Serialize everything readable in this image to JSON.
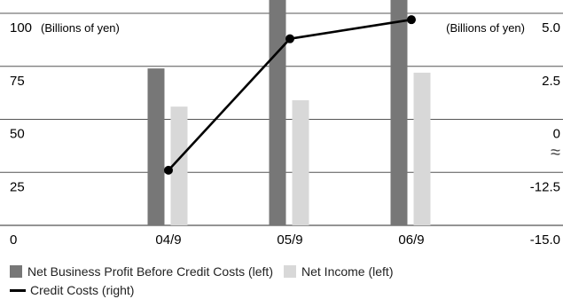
{
  "chart_data": {
    "type": "bar",
    "categories": [
      "04/9",
      "05/9",
      "06/9"
    ],
    "series": [
      {
        "name": "Net Business Profit Before Credit Costs (left)",
        "axis": "left",
        "kind": "bar",
        "color": "#777777",
        "values": [
          74,
          107,
          110
        ]
      },
      {
        "name": "Net Income (left)",
        "axis": "left",
        "kind": "bar",
        "color": "#d8d8d8",
        "values": [
          56,
          59,
          72
        ]
      },
      {
        "name": "Credit Costs (right)",
        "axis": "right",
        "kind": "line",
        "color": "#000000",
        "values": [
          -12.0,
          3.8,
          4.7
        ]
      }
    ],
    "left_axis": {
      "unit_label": "(Billions of yen)",
      "ylim": [
        0,
        100
      ],
      "ticks": [
        "0",
        "25",
        "50",
        "75",
        "100"
      ]
    },
    "right_axis": {
      "unit_label": "(Billions of yen)",
      "ticks": [
        "-15.0",
        "-12.5",
        "0",
        "2.5",
        "5.0"
      ],
      "tick_values": [
        -15.0,
        -12.5,
        0,
        2.5,
        5.0
      ],
      "break_symbol": "≈",
      "broken": true
    },
    "grid": true,
    "legend_position": "bottom"
  }
}
